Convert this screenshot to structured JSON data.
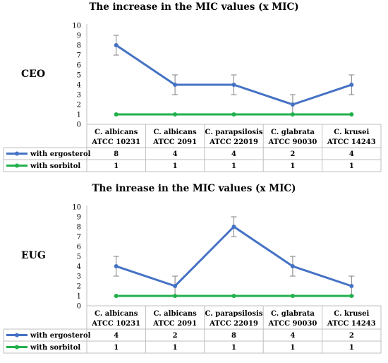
{
  "chart_data": [
    {
      "type": "line",
      "title": "The increase in the MIC values (x MIC)",
      "row_label": "CEO",
      "categories": [
        [
          "C. albicans",
          "ATCC 10231"
        ],
        [
          "C. albicans",
          "ATCC 2091"
        ],
        [
          "C. parapsilosis",
          "ATCC 22019"
        ],
        [
          "C. glabrata",
          "ATCC 90030"
        ],
        [
          "C. krusei",
          "ATCC 14243"
        ]
      ],
      "ylim": [
        0,
        10
      ],
      "yticks": [
        "0",
        "1",
        "2",
        "3",
        "4",
        "5",
        "6",
        "7",
        "8",
        "9",
        "10"
      ],
      "grid": false,
      "legend": "table-left",
      "series": [
        {
          "name": "with ergosterol",
          "color": "#4472c4",
          "values": [
            8,
            4,
            4,
            2,
            4
          ],
          "error": [
            1,
            1,
            1,
            1,
            1
          ],
          "labels": [
            "8",
            "4",
            "4",
            "2",
            "4"
          ]
        },
        {
          "name": "with sorbitol",
          "color": "#21b04b",
          "values": [
            1,
            1,
            1,
            1,
            1
          ],
          "error": [
            0,
            0,
            0,
            0,
            0
          ],
          "labels": [
            "1",
            "1",
            "1",
            "1",
            "1"
          ]
        }
      ]
    },
    {
      "type": "line",
      "title": "The inrease in the MIC values (x MIC)",
      "row_label": "EUG",
      "categories": [
        [
          "C. albicans",
          "ATCC 10231"
        ],
        [
          "C. albicans",
          "ATCC 2091"
        ],
        [
          "C. parapsilosis",
          "ATCC 22019"
        ],
        [
          "C. glabrata",
          "ATCC 90030"
        ],
        [
          "C. krusei",
          "ATCC 14243"
        ]
      ],
      "ylim": [
        0,
        10
      ],
      "yticks": [
        "0",
        "1",
        "2",
        "3",
        "4",
        "5",
        "6",
        "7",
        "8",
        "9",
        "10"
      ],
      "grid": false,
      "legend": "table-left",
      "series": [
        {
          "name": "with ergosterol",
          "color": "#4472c4",
          "values": [
            4,
            2,
            8,
            4,
            2
          ],
          "error": [
            1,
            1,
            1,
            1,
            1
          ],
          "labels": [
            "4",
            "2",
            "8",
            "4",
            "2"
          ]
        },
        {
          "name": "with sorbitol",
          "color": "#21b04b",
          "values": [
            1,
            1,
            1,
            1,
            1
          ],
          "error": [
            0,
            0,
            0,
            0,
            0
          ],
          "labels": [
            "1",
            "1",
            "1",
            "1",
            "1"
          ]
        }
      ]
    }
  ]
}
